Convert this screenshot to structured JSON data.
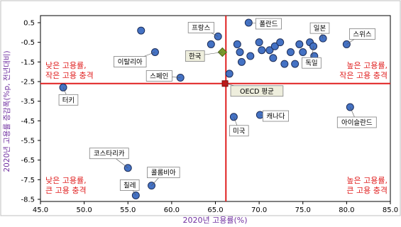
{
  "chart_data": {
    "type": "scatter",
    "title": "",
    "xlabel": "2020년 고용률(%)",
    "ylabel": "2020년 고용률 증감폭(%p, 전년대비)",
    "xlim": [
      45,
      85
    ],
    "ylim": [
      -8.5,
      1.0
    ],
    "x_ticks": [
      "45.0",
      "50.0",
      "55.0",
      "60.0",
      "65.0",
      "70.0",
      "75.0",
      "80.0",
      "85.0"
    ],
    "y_ticks": [
      "0.5",
      "-0.5",
      "-1.5",
      "-2.5",
      "-3.5",
      "-4.5",
      "-5.5",
      "-6.5",
      "-7.5",
      "-8.5"
    ],
    "grid": false,
    "reference_lines": {
      "x": 66.2,
      "y": -2.6,
      "color": "#e02020"
    },
    "quadrant_labels": [
      {
        "text": "낮은 고용률,\n작은 고용 충격",
        "position": "top-left"
      },
      {
        "text": "높은 고용률,\n작은 고용 충격",
        "position": "top-right"
      },
      {
        "text": "낮은 고용률,\n큰 고용 충격",
        "position": "bottom-left"
      },
      {
        "text": "높은 고용률,\n큰 고용 충격",
        "position": "bottom-right"
      }
    ],
    "labeled_points": [
      {
        "label": "프랑스",
        "x": 65.3,
        "y": -0.2
      },
      {
        "label": "폴란드",
        "x": 68.8,
        "y": 0.5
      },
      {
        "label": "일본",
        "x": 77.3,
        "y": -0.3
      },
      {
        "label": "스위스",
        "x": 80.0,
        "y": -0.6
      },
      {
        "label": "이탈리아",
        "x": 58.1,
        "y": -1.0
      },
      {
        "label": "독일",
        "x": 76.2,
        "y": -0.7
      },
      {
        "label": "스페인",
        "x": 61.0,
        "y": -2.3
      },
      {
        "label": "터키",
        "x": 47.6,
        "y": -2.8
      },
      {
        "label": "캐나다",
        "x": 70.1,
        "y": -4.2
      },
      {
        "label": "미국",
        "x": 67.1,
        "y": -4.3
      },
      {
        "label": "아이슬란드",
        "x": 80.4,
        "y": -3.8
      },
      {
        "label": "코스타리카",
        "x": 55.0,
        "y": -6.9
      },
      {
        "label": "콜롬비아",
        "x": 57.7,
        "y": -7.8
      },
      {
        "label": "칠레",
        "x": 55.9,
        "y": -8.3
      }
    ],
    "other_points": [
      {
        "x": 56.5,
        "y": 0.1
      },
      {
        "x": 64.5,
        "y": -0.6
      },
      {
        "x": 67.5,
        "y": -0.6
      },
      {
        "x": 67.8,
        "y": -1.0
      },
      {
        "x": 68.0,
        "y": -1.5
      },
      {
        "x": 69.0,
        "y": -1.2
      },
      {
        "x": 70.0,
        "y": -0.5
      },
      {
        "x": 70.3,
        "y": -0.9
      },
      {
        "x": 71.2,
        "y": -0.9
      },
      {
        "x": 71.6,
        "y": -1.3
      },
      {
        "x": 71.8,
        "y": -0.7
      },
      {
        "x": 72.4,
        "y": -0.5
      },
      {
        "x": 72.9,
        "y": -1.6
      },
      {
        "x": 73.6,
        "y": -1.0
      },
      {
        "x": 74.1,
        "y": -1.6
      },
      {
        "x": 74.6,
        "y": -0.6
      },
      {
        "x": 75.0,
        "y": -1.0
      },
      {
        "x": 75.8,
        "y": -0.5
      },
      {
        "x": 76.3,
        "y": -1.2
      },
      {
        "x": 66.6,
        "y": -2.1
      }
    ],
    "highlights": [
      {
        "label": "한국",
        "x": 65.8,
        "y": -1.0,
        "marker": "diamond",
        "color": "#7a9a2a"
      },
      {
        "label": "OECD 평균",
        "x": 66.1,
        "y": -2.6,
        "marker": "square",
        "color": "#c01818"
      }
    ],
    "colors": {
      "points": "#4472c4",
      "points_stroke": "#1e2f5a",
      "axis_title": "#7030a0",
      "quadrant_text": "#e02020",
      "label_box_fill": "#ffffff",
      "highlight_box_fill": "#eeeedd"
    }
  }
}
